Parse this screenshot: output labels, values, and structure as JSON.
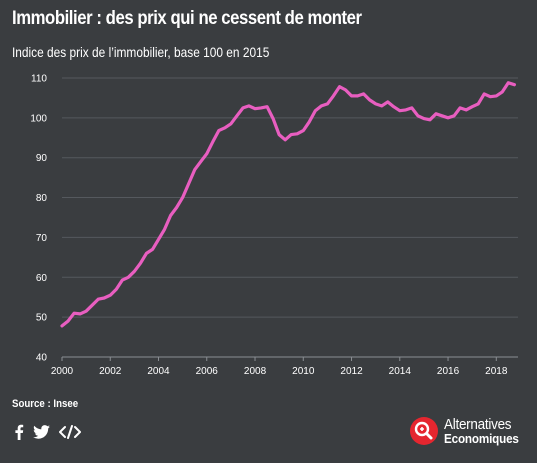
{
  "header": {
    "title": "Immobilier : des prix qui ne cessent de monter",
    "subtitle": "Indice des prix de l’immobilier, base 100 en 2015"
  },
  "footer": {
    "source": "Source : Insee",
    "share_icons": [
      "facebook-icon",
      "twitter-icon",
      "embed-code-icon"
    ],
    "brand_line1": "Alternatives",
    "brand_line2": "Economiques"
  },
  "colors": {
    "background": "#3a3d40",
    "line": "#e85ec0",
    "grid": "#55595e",
    "brand_red": "#e5262f"
  },
  "chart_data": {
    "type": "line",
    "title": "Immobilier : des prix qui ne cessent de monter",
    "subtitle": "Indice des prix de l’immobilier, base 100 en 2015",
    "xlabel": "",
    "ylabel": "",
    "xlim": [
      2000,
      2018.9
    ],
    "ylim": [
      40,
      112
    ],
    "yticks": [
      40,
      50,
      60,
      70,
      80,
      90,
      100,
      110
    ],
    "xticks": [
      2000,
      2002,
      2004,
      2006,
      2008,
      2010,
      2012,
      2014,
      2016,
      2018
    ],
    "grid": "horizontal",
    "series": [
      {
        "name": "",
        "x": [
          2000.0,
          2000.25,
          2000.5,
          2000.75,
          2001.0,
          2001.25,
          2001.5,
          2001.75,
          2002.0,
          2002.25,
          2002.5,
          2002.75,
          2003.0,
          2003.25,
          2003.5,
          2003.75,
          2004.0,
          2004.25,
          2004.5,
          2004.75,
          2005.0,
          2005.25,
          2005.5,
          2005.75,
          2006.0,
          2006.25,
          2006.5,
          2006.75,
          2007.0,
          2007.25,
          2007.5,
          2007.75,
          2008.0,
          2008.25,
          2008.5,
          2008.75,
          2009.0,
          2009.25,
          2009.5,
          2009.75,
          2010.0,
          2010.25,
          2010.5,
          2010.75,
          2011.0,
          2011.25,
          2011.5,
          2011.75,
          2012.0,
          2012.25,
          2012.5,
          2012.75,
          2013.0,
          2013.25,
          2013.5,
          2013.75,
          2014.0,
          2014.25,
          2014.5,
          2014.75,
          2015.0,
          2015.25,
          2015.5,
          2015.75,
          2016.0,
          2016.25,
          2016.5,
          2016.75,
          2017.0,
          2017.25,
          2017.5,
          2017.75,
          2018.0,
          2018.25,
          2018.5,
          2018.75
        ],
        "values": [
          47.8,
          49.0,
          51.0,
          50.8,
          51.5,
          53.0,
          54.5,
          54.8,
          55.5,
          57.0,
          59.3,
          60.0,
          61.5,
          63.5,
          66.0,
          67.0,
          69.5,
          72.0,
          75.5,
          77.5,
          80.0,
          83.5,
          87.0,
          89.0,
          91.0,
          94.0,
          96.8,
          97.5,
          98.5,
          100.5,
          102.5,
          103.0,
          102.3,
          102.5,
          102.8,
          99.8,
          95.8,
          94.5,
          95.8,
          96.0,
          96.8,
          99.0,
          101.8,
          103.0,
          103.5,
          105.5,
          107.8,
          107.0,
          105.5,
          105.5,
          106.0,
          104.5,
          103.5,
          103.0,
          104.0,
          102.8,
          101.8,
          102.0,
          102.5,
          100.5,
          99.8,
          99.5,
          101.0,
          100.5,
          100.0,
          100.5,
          102.5,
          102.0,
          102.8,
          103.5,
          106.0,
          105.3,
          105.5,
          106.5,
          108.8,
          108.3
        ]
      }
    ]
  }
}
